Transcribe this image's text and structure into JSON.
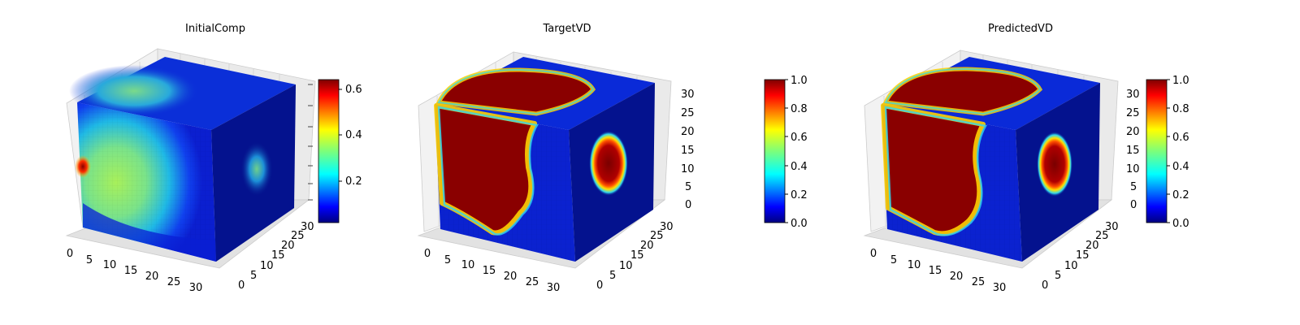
{
  "chart_data": [
    {
      "type": "heatmap",
      "subtype": "3d-voxel-cube",
      "title": "InitialComp",
      "x_ticks": [
        "0",
        "5",
        "10",
        "15",
        "20",
        "25",
        "30"
      ],
      "y_ticks": [
        "0",
        "5",
        "10",
        "15",
        "20",
        "25",
        "30"
      ],
      "z_ticks": [],
      "grid": true,
      "colormap": "jet",
      "colorbar": {
        "ticks": [
          "0.2",
          "0.4",
          "0.6"
        ],
        "range": [
          0.05,
          0.65
        ]
      },
      "faces": {
        "front": "broad green blob fading to blue on the right; small red spot at left edge",
        "top": "green-cyan blob on back-left, blue elsewhere",
        "right": "faint cyan-green ellipse in the middle on dark blue"
      }
    },
    {
      "type": "heatmap",
      "subtype": "3d-voxel-cube",
      "title": "TargetVD",
      "x_ticks": [
        "0",
        "5",
        "10",
        "15",
        "20",
        "25",
        "30"
      ],
      "y_ticks": [
        "0",
        "5",
        "10",
        "15",
        "20",
        "25",
        "30"
      ],
      "z_ticks": [
        "0",
        "5",
        "10",
        "15",
        "20",
        "25",
        "30"
      ],
      "grid": true,
      "colormap": "jet",
      "colorbar": {
        "ticks": [
          "0.0",
          "0.2",
          "0.4",
          "0.6",
          "0.8",
          "1.0"
        ],
        "range": [
          0.0,
          1.0
        ]
      },
      "faces": {
        "front": "dark red region on left with jet-coloured boundary, blue elsewhere",
        "top": "dark red semicircular region",
        "right": "dark red ellipse ringed with yellow and cyan"
      }
    },
    {
      "type": "heatmap",
      "subtype": "3d-voxel-cube",
      "title": "PredictedVD",
      "x_ticks": [
        "0",
        "5",
        "10",
        "15",
        "20",
        "25",
        "30"
      ],
      "y_ticks": [
        "0",
        "5",
        "10",
        "15",
        "20",
        "25",
        "30"
      ],
      "z_ticks": [
        "0",
        "5",
        "10",
        "15",
        "20",
        "25",
        "30"
      ],
      "grid": true,
      "colormap": "jet",
      "colorbar": {
        "ticks": [
          "0.0",
          "0.2",
          "0.4",
          "0.6",
          "0.8",
          "1.0"
        ],
        "range": [
          0.0,
          1.0
        ]
      },
      "faces": {
        "front": "dark red region on left with jet-coloured boundary, blue elsewhere",
        "top": "dark red semicircular region",
        "right": "dark red ellipse ringed with yellow and cyan"
      }
    }
  ]
}
